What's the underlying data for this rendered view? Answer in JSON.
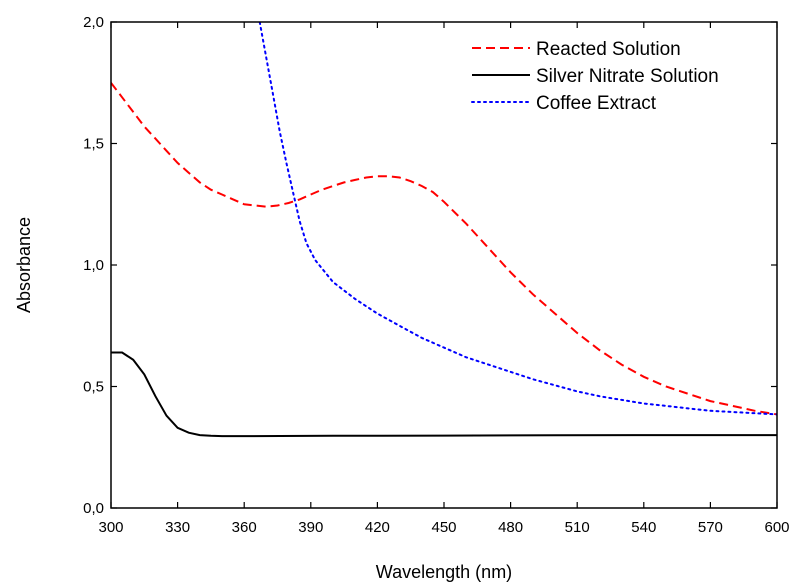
{
  "chart_data": {
    "type": "line",
    "title": "",
    "xlabel": "Wavelength (nm)",
    "ylabel": "Absorbance",
    "xlim": [
      300,
      600
    ],
    "ylim": [
      0.0,
      2.0
    ],
    "xticks": [
      300,
      330,
      360,
      390,
      420,
      450,
      480,
      510,
      540,
      570,
      600
    ],
    "xtick_labels": [
      "300",
      "330",
      "360",
      "390",
      "420",
      "450",
      "480",
      "510",
      "540",
      "570",
      "600"
    ],
    "yticks": [
      0.0,
      0.5,
      1.0,
      1.5,
      2.0
    ],
    "ytick_labels": [
      "0,0",
      "0,5",
      "1,0",
      "1,5",
      "2,0"
    ],
    "grid": false,
    "legend_position": "top-right",
    "series": [
      {
        "name": "Reacted Solution",
        "color": "#ff0000",
        "line_style": "dashed",
        "x": [
          300,
          305,
          310,
          315,
          320,
          325,
          330,
          335,
          340,
          345,
          350,
          355,
          360,
          365,
          370,
          375,
          380,
          385,
          390,
          395,
          400,
          405,
          410,
          415,
          420,
          425,
          430,
          435,
          440,
          445,
          450,
          460,
          470,
          480,
          490,
          500,
          510,
          520,
          530,
          540,
          550,
          560,
          570,
          580,
          590,
          600
        ],
        "y": [
          1.75,
          1.69,
          1.63,
          1.57,
          1.52,
          1.47,
          1.42,
          1.38,
          1.34,
          1.31,
          1.29,
          1.27,
          1.25,
          1.245,
          1.24,
          1.245,
          1.255,
          1.27,
          1.29,
          1.31,
          1.325,
          1.34,
          1.35,
          1.36,
          1.365,
          1.365,
          1.36,
          1.345,
          1.325,
          1.3,
          1.26,
          1.17,
          1.07,
          0.97,
          0.88,
          0.8,
          0.72,
          0.65,
          0.59,
          0.54,
          0.5,
          0.47,
          0.44,
          0.42,
          0.4,
          0.385
        ]
      },
      {
        "name": "Silver Nitrate Solution",
        "color": "#000000",
        "line_style": "solid",
        "x": [
          300,
          305,
          310,
          315,
          320,
          325,
          330,
          335,
          340,
          345,
          350,
          360,
          400,
          450,
          500,
          550,
          600
        ],
        "y": [
          0.64,
          0.64,
          0.61,
          0.55,
          0.46,
          0.38,
          0.33,
          0.31,
          0.3,
          0.297,
          0.296,
          0.296,
          0.297,
          0.298,
          0.299,
          0.3,
          0.3
        ]
      },
      {
        "name": "Coffee Extract",
        "color": "#0000ff",
        "line_style": "dotted",
        "x": [
          367,
          370,
          373,
          376,
          379,
          382,
          385,
          388,
          392,
          400,
          410,
          420,
          430,
          440,
          450,
          460,
          470,
          480,
          490,
          500,
          510,
          520,
          530,
          540,
          550,
          560,
          570,
          580,
          590,
          600
        ],
        "y": [
          2.0,
          1.85,
          1.7,
          1.55,
          1.42,
          1.3,
          1.18,
          1.09,
          1.02,
          0.93,
          0.86,
          0.8,
          0.75,
          0.7,
          0.66,
          0.62,
          0.59,
          0.56,
          0.53,
          0.505,
          0.48,
          0.46,
          0.445,
          0.43,
          0.42,
          0.41,
          0.4,
          0.395,
          0.39,
          0.385
        ]
      }
    ]
  }
}
